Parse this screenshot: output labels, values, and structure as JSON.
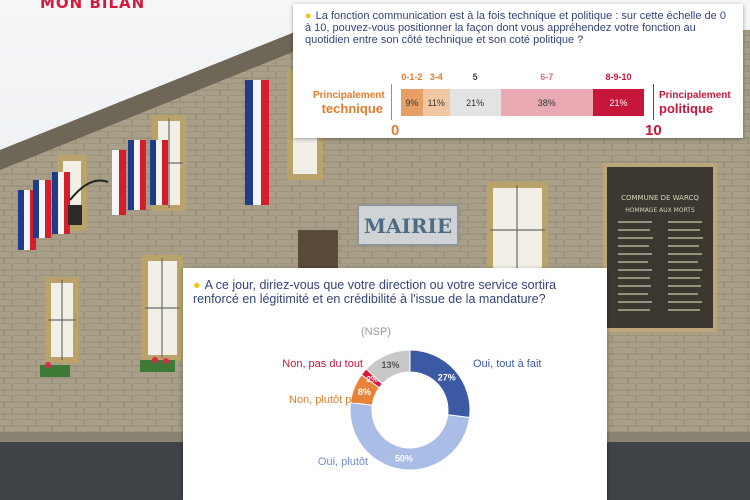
{
  "header": {
    "brand": "MON BILAN"
  },
  "photo": {
    "sign_text": "MAIRIE",
    "plaque_title": "COMMUNE DE WARCQ",
    "plaque_subtitle": "HOMMAGE AUX MORTS"
  },
  "survey1": {
    "question": "La fonction communication est à la fois technique et politique : sur cette échelle de 0 à 10, pouvez-vous positionner la façon dont vous appréhendez votre fonction au quotidien entre son côté technique et son coté politique ?",
    "left_label_a": "Principalement",
    "left_label_b": "technique",
    "right_label_a": "Principalement",
    "right_label_b": "politique",
    "scale_min": "0",
    "scale_max": "10",
    "segments": [
      {
        "range": "0-1-2",
        "value": "9%",
        "color": "#e6a067",
        "header_color": "#e27c2f"
      },
      {
        "range": "3-4",
        "value": "11%",
        "color": "#f1c7a3",
        "header_color": "#e27c2f"
      },
      {
        "range": "5",
        "value": "21%",
        "color": "#e3e3e3",
        "header_color": "#444444"
      },
      {
        "range": "6-7",
        "value": "38%",
        "color": "#e9a9b2",
        "header_color": "#e56d7a"
      },
      {
        "range": "8-9-10",
        "value": "21%",
        "color": "#c6163a",
        "header_color": "#c6163a"
      }
    ]
  },
  "survey2": {
    "question": "A ce jour, diriez-vous que votre direction ou votre service sortira renforcé en légitimité et en crédibilité à l'issue de la mandature?",
    "chart_data": {
      "type": "pie",
      "donut": true,
      "categories": [
        "Oui, tout à fait",
        "Oui, plutôt",
        "Non, plutôt pas",
        "Non, pas du tout",
        "(NSP)"
      ],
      "values": [
        27,
        50,
        8,
        2,
        13
      ],
      "value_labels": [
        "27%",
        "50%",
        "8%",
        "2%",
        "13%"
      ],
      "colors": [
        "#3b5aa3",
        "#a9bde6",
        "#e8843a",
        "#d8183a",
        "#c8c8c8"
      ],
      "label_colors": [
        "#3b5aa3",
        "#6f8cc8",
        "#e27c2f",
        "#c6163a",
        "#9a9a9a"
      ]
    }
  }
}
